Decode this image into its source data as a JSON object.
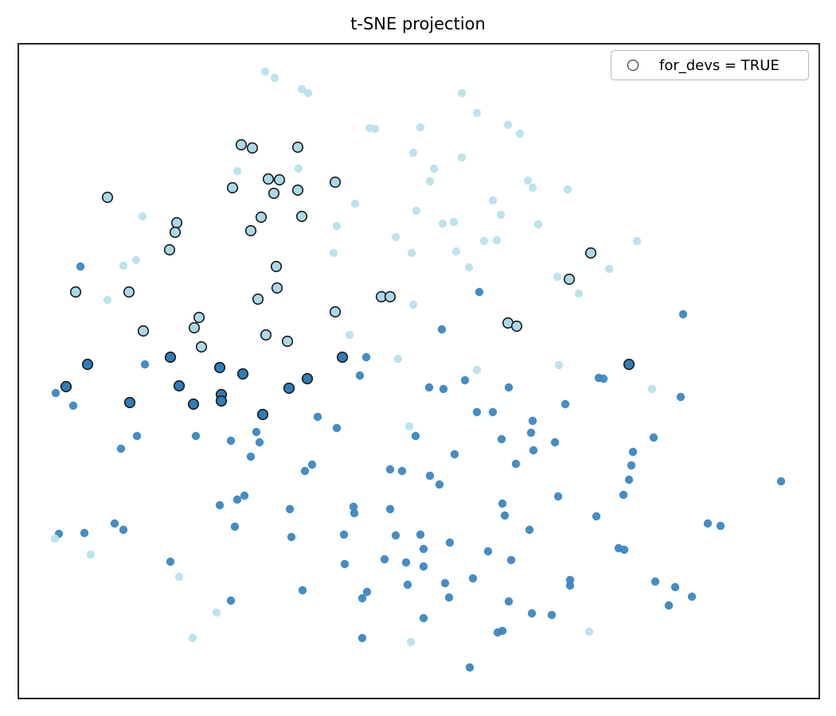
{
  "title": "t-SNE projection",
  "legend": {
    "label": "for_devs = TRUE",
    "marker": "open-circle",
    "position": "upper-right"
  },
  "colors": {
    "light": "#b9e2ec",
    "light_outlined": "#a9d9e9",
    "dark": "#3b87c1",
    "dark_outlined": "#2e7cb8",
    "edge": "#1a1a1a",
    "frame": "#262626",
    "legend_border": "#b7b7b7"
  },
  "chart_data": {
    "type": "scatter",
    "title": "t-SNE projection",
    "xlabel": "",
    "ylabel": "",
    "axes": {
      "ticks": "none",
      "frame": true,
      "grid": false
    },
    "legend": {
      "entries": [
        {
          "label": "for_devs = TRUE",
          "marker": "open-circle"
        }
      ],
      "position": "upper right"
    },
    "series_key": {
      "L": "light-blue cluster",
      "D": "steel-blue cluster"
    },
    "outlined_key": "1 = black-edged marker (for_devs = TRUE), 0 = plain marker",
    "coord_space": "screen pixels, x right / y down, plot frame (23,55)-(1029,878)",
    "points": [
      [
        333,
        90,
        "L",
        0
      ],
      [
        345,
        98,
        "L",
        0
      ],
      [
        303,
        182,
        "L",
        1
      ],
      [
        317,
        186,
        "L",
        1
      ],
      [
        298,
        215,
        "L",
        0
      ],
      [
        337,
        225,
        "L",
        1
      ],
      [
        351,
        226,
        "L",
        1
      ],
      [
        292,
        236,
        "L",
        1
      ],
      [
        344,
        243,
        "L",
        1
      ],
      [
        135,
        248,
        "L",
        1
      ],
      [
        179,
        272,
        "L",
        0
      ],
      [
        222,
        280,
        "L",
        1
      ],
      [
        220,
        292,
        "L",
        1
      ],
      [
        328,
        273,
        "L",
        1
      ],
      [
        315,
        290,
        "L",
        1
      ],
      [
        213,
        314,
        "L",
        1
      ],
      [
        101,
        335,
        "D",
        0
      ],
      [
        155,
        334,
        "L",
        0
      ],
      [
        171,
        327,
        "L",
        0
      ],
      [
        347,
        335,
        "L",
        1
      ],
      [
        379,
        112,
        "L",
        0
      ],
      [
        387,
        117,
        "L",
        0
      ],
      [
        580,
        117,
        "L",
        0
      ],
      [
        599,
        142,
        "L",
        0
      ],
      [
        464,
        161,
        "L",
        0
      ],
      [
        471,
        162,
        "L",
        0
      ],
      [
        528,
        160,
        "L",
        0
      ],
      [
        638,
        157,
        "L",
        0
      ],
      [
        653,
        168,
        "L",
        0
      ],
      [
        374,
        185,
        "L",
        1
      ],
      [
        519,
        192,
        "L",
        0
      ],
      [
        580,
        198,
        "L",
        0
      ],
      [
        375,
        212,
        "L",
        0
      ],
      [
        545,
        212,
        "L",
        0
      ],
      [
        540,
        228,
        "L",
        0
      ],
      [
        421,
        229,
        "L",
        1
      ],
      [
        374,
        239,
        "L",
        1
      ],
      [
        663,
        227,
        "L",
        0
      ],
      [
        669,
        236,
        "L",
        0
      ],
      [
        446,
        256,
        "L",
        0
      ],
      [
        619,
        252,
        "L",
        0
      ],
      [
        523,
        265,
        "L",
        0
      ],
      [
        379,
        272,
        "L",
        1
      ],
      [
        629,
        270,
        "L",
        0
      ],
      [
        556,
        281,
        "L",
        0
      ],
      [
        570,
        279,
        "L",
        0
      ],
      [
        676,
        282,
        "L",
        0
      ],
      [
        423,
        284,
        "L",
        0
      ],
      [
        608,
        303,
        "L",
        0
      ],
      [
        624,
        302,
        "L",
        0
      ],
      [
        497,
        298,
        "L",
        0
      ],
      [
        419,
        318,
        "L",
        0
      ],
      [
        517,
        318,
        "L",
        0
      ],
      [
        573,
        316,
        "L",
        0
      ],
      [
        589,
        336,
        "L",
        0
      ],
      [
        713,
        238,
        "L",
        0
      ],
      [
        800,
        303,
        "L",
        0
      ],
      [
        742,
        318,
        "L",
        1
      ],
      [
        765,
        338,
        "L",
        0
      ],
      [
        95,
        367,
        "L",
        1
      ],
      [
        135,
        377,
        "L",
        0
      ],
      [
        162,
        367,
        "L",
        1
      ],
      [
        348,
        362,
        "L",
        1
      ],
      [
        324,
        376,
        "L",
        1
      ],
      [
        250,
        399,
        "L",
        1
      ],
      [
        244,
        412,
        "L",
        1
      ],
      [
        180,
        416,
        "L",
        1
      ],
      [
        334,
        421,
        "L",
        1
      ],
      [
        361,
        429,
        "L",
        1
      ],
      [
        253,
        436,
        "L",
        1
      ],
      [
        214,
        449,
        "D",
        1
      ],
      [
        110,
        458,
        "D",
        1
      ],
      [
        182,
        458,
        "D",
        0
      ],
      [
        276,
        462,
        "D",
        1
      ],
      [
        305,
        470,
        "D",
        1
      ],
      [
        83,
        486,
        "D",
        1
      ],
      [
        70,
        494,
        "D",
        0
      ],
      [
        225,
        485,
        "D",
        1
      ],
      [
        363,
        488,
        "D",
        1
      ],
      [
        278,
        496,
        "D",
        1
      ],
      [
        278,
        504,
        "D",
        1
      ],
      [
        92,
        510,
        "D",
        0
      ],
      [
        163,
        506,
        "D",
        1
      ],
      [
        243,
        508,
        "D",
        1
      ],
      [
        330,
        521,
        "D",
        1
      ],
      [
        172,
        548,
        "D",
        0
      ],
      [
        246,
        548,
        "D",
        0
      ],
      [
        152,
        564,
        "D",
        0
      ],
      [
        290,
        554,
        "D",
        0
      ],
      [
        322,
        543,
        "D",
        0
      ],
      [
        326,
        556,
        "D",
        0
      ],
      [
        315,
        574,
        "D",
        0
      ],
      [
        700,
        348,
        "L",
        0
      ],
      [
        602,
        367,
        "D",
        0
      ],
      [
        479,
        373,
        "L",
        1
      ],
      [
        490,
        373,
        "L",
        1
      ],
      [
        519,
        383,
        "L",
        0
      ],
      [
        421,
        392,
        "L",
        1
      ],
      [
        555,
        414,
        "D",
        0
      ],
      [
        638,
        406,
        "L",
        1
      ],
      [
        649,
        410,
        "L",
        1
      ],
      [
        439,
        421,
        "L",
        0
      ],
      [
        430,
        449,
        "D",
        1
      ],
      [
        460,
        449,
        "D",
        0
      ],
      [
        500,
        451,
        "L",
        0
      ],
      [
        452,
        472,
        "D",
        0
      ],
      [
        386,
        476,
        "D",
        1
      ],
      [
        599,
        465,
        "L",
        0
      ],
      [
        584,
        478,
        "D",
        0
      ],
      [
        539,
        487,
        "D",
        0
      ],
      [
        557,
        489,
        "D",
        0
      ],
      [
        639,
        487,
        "D",
        0
      ],
      [
        702,
        459,
        "L",
        0
      ],
      [
        399,
        524,
        "D",
        0
      ],
      [
        599,
        518,
        "D",
        0
      ],
      [
        619,
        518,
        "D",
        0
      ],
      [
        423,
        538,
        "D",
        0
      ],
      [
        514,
        536,
        "L",
        0
      ],
      [
        522,
        548,
        "D",
        0
      ],
      [
        669,
        529,
        "D",
        0
      ],
      [
        667,
        544,
        "D",
        0
      ],
      [
        630,
        552,
        "D",
        0
      ],
      [
        670,
        566,
        "D",
        0
      ],
      [
        697,
        556,
        "D",
        0
      ],
      [
        571,
        571,
        "D",
        0
      ],
      [
        648,
        583,
        "D",
        0
      ],
      [
        383,
        592,
        "D",
        0
      ],
      [
        392,
        584,
        "D",
        0
      ],
      [
        490,
        590,
        "D",
        0
      ],
      [
        505,
        592,
        "D",
        0
      ],
      [
        540,
        598,
        "D",
        0
      ],
      [
        552,
        609,
        "D",
        0
      ],
      [
        715,
        351,
        "L",
        1
      ],
      [
        727,
        369,
        "L",
        0
      ],
      [
        858,
        395,
        "D",
        0
      ],
      [
        790,
        458,
        "D",
        1
      ],
      [
        752,
        475,
        "D",
        0
      ],
      [
        758,
        476,
        "D",
        0
      ],
      [
        819,
        489,
        "L",
        0
      ],
      [
        855,
        499,
        "D",
        0
      ],
      [
        710,
        508,
        "D",
        0
      ],
      [
        821,
        550,
        "D",
        0
      ],
      [
        795,
        568,
        "D",
        0
      ],
      [
        793,
        585,
        "D",
        0
      ],
      [
        790,
        603,
        "D",
        0
      ],
      [
        981,
        605,
        "D",
        0
      ],
      [
        276,
        635,
        "D",
        0
      ],
      [
        298,
        628,
        "D",
        0
      ],
      [
        307,
        623,
        "D",
        0
      ],
      [
        295,
        662,
        "D",
        0
      ],
      [
        144,
        658,
        "D",
        0
      ],
      [
        155,
        666,
        "D",
        0
      ],
      [
        106,
        670,
        "D",
        0
      ],
      [
        74,
        671,
        "D",
        0
      ],
      [
        69,
        677,
        "L",
        0
      ],
      [
        114,
        697,
        "L",
        0
      ],
      [
        214,
        706,
        "D",
        0
      ],
      [
        225,
        725,
        "L",
        0
      ],
      [
        290,
        755,
        "D",
        0
      ],
      [
        272,
        770,
        "L",
        0
      ],
      [
        242,
        802,
        "L",
        0
      ],
      [
        364,
        640,
        "D",
        0
      ],
      [
        444,
        637,
        "D",
        0
      ],
      [
        445,
        645,
        "D",
        0
      ],
      [
        490,
        640,
        "D",
        0
      ],
      [
        366,
        675,
        "D",
        0
      ],
      [
        432,
        672,
        "D",
        0
      ],
      [
        497,
        673,
        "D",
        0
      ],
      [
        528,
        672,
        "D",
        0
      ],
      [
        532,
        690,
        "D",
        0
      ],
      [
        565,
        682,
        "D",
        0
      ],
      [
        483,
        703,
        "D",
        0
      ],
      [
        510,
        707,
        "D",
        0
      ],
      [
        532,
        712,
        "D",
        0
      ],
      [
        433,
        709,
        "D",
        0
      ],
      [
        613,
        693,
        "D",
        0
      ],
      [
        642,
        704,
        "D",
        0
      ],
      [
        631,
        633,
        "D",
        0
      ],
      [
        634,
        648,
        "D",
        0
      ],
      [
        665,
        666,
        "D",
        0
      ],
      [
        701,
        624,
        "D",
        0
      ],
      [
        594,
        727,
        "D",
        0
      ],
      [
        512,
        735,
        "D",
        0
      ],
      [
        559,
        733,
        "D",
        0
      ],
      [
        380,
        742,
        "D",
        0
      ],
      [
        461,
        744,
        "D",
        0
      ],
      [
        455,
        752,
        "D",
        0
      ],
      [
        564,
        751,
        "D",
        0
      ],
      [
        639,
        756,
        "D",
        0
      ],
      [
        668,
        771,
        "D",
        0
      ],
      [
        693,
        773,
        "D",
        0
      ],
      [
        532,
        777,
        "D",
        0
      ],
      [
        625,
        795,
        "D",
        0
      ],
      [
        631,
        793,
        "D",
        0
      ],
      [
        455,
        802,
        "D",
        0
      ],
      [
        516,
        807,
        "L",
        0
      ],
      [
        590,
        839,
        "D",
        0
      ],
      [
        783,
        622,
        "D",
        0
      ],
      [
        749,
        649,
        "D",
        0
      ],
      [
        889,
        658,
        "D",
        0
      ],
      [
        905,
        661,
        "D",
        0
      ],
      [
        777,
        689,
        "D",
        0
      ],
      [
        784,
        691,
        "D",
        0
      ],
      [
        716,
        729,
        "D",
        0
      ],
      [
        716,
        736,
        "D",
        0
      ],
      [
        823,
        731,
        "D",
        0
      ],
      [
        848,
        738,
        "D",
        0
      ],
      [
        869,
        750,
        "D",
        0
      ],
      [
        840,
        761,
        "D",
        0
      ],
      [
        740,
        794,
        "L",
        0
      ]
    ]
  }
}
